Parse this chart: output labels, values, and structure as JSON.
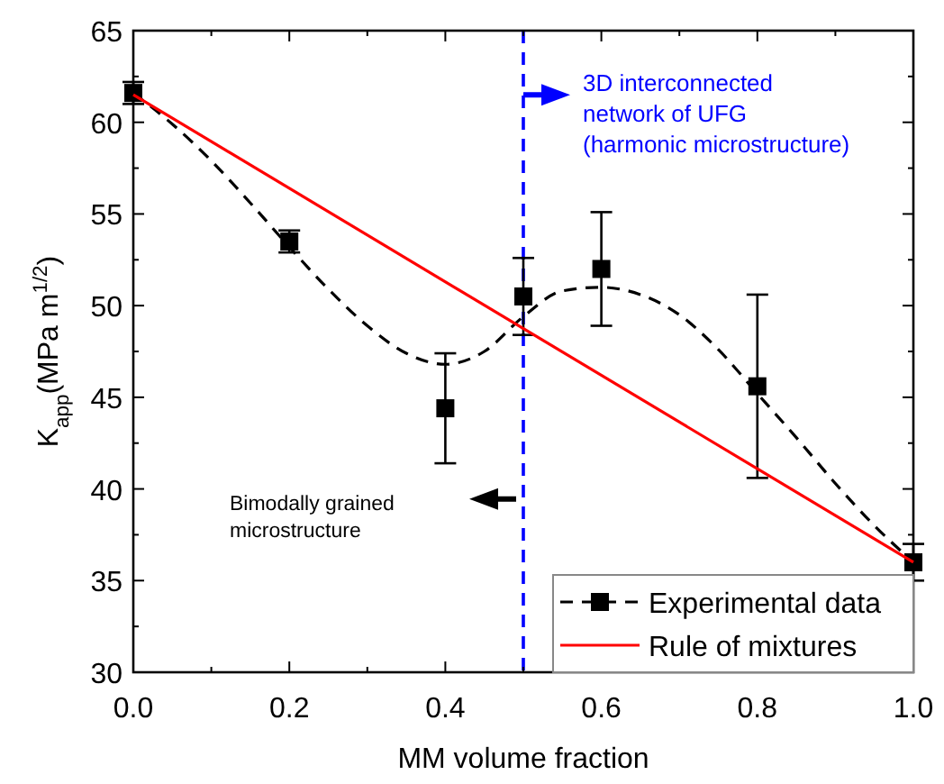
{
  "chart_data": {
    "type": "scatter",
    "xlabel": "MM volume fraction",
    "ylabel": "K$_{app}$(MPa m$^{1/2}$)",
    "xlim": [
      0,
      1
    ],
    "ylim": [
      30,
      65
    ],
    "xticks": [
      {
        "value": 0,
        "label": "0.0"
      },
      {
        "value": 0.1,
        "label": null
      },
      {
        "value": 0.2,
        "label": "0.2"
      },
      {
        "value": 0.3,
        "label": null
      },
      {
        "value": 0.4,
        "label": "0.4"
      },
      {
        "value": 0.5,
        "label": null
      },
      {
        "value": 0.6,
        "label": "0.6"
      },
      {
        "value": 0.7,
        "label": null
      },
      {
        "value": 0.8,
        "label": "0.8"
      },
      {
        "value": 0.9,
        "label": null
      },
      {
        "value": 1,
        "label": "1.0"
      }
    ],
    "yticks": [
      30,
      {
        "value": 32.5,
        "label": null
      },
      35,
      {
        "value": 37.5,
        "label": null
      },
      40,
      {
        "value": 42.5,
        "label": null
      },
      45,
      {
        "value": 47.5,
        "label": null
      },
      50,
      {
        "value": 52.5,
        "label": null
      },
      55,
      {
        "value": 57.5,
        "label": null
      },
      60,
      {
        "value": 62.5,
        "label": null
      },
      65
    ],
    "x": [
      0,
      0.2,
      0.4,
      0.5,
      0.6,
      0.8,
      1.0
    ],
    "series": [
      {
        "type": "line",
        "color": "#000000",
        "line_style": "dashed",
        "marker": "none",
        "x": [
          0,
          0.05,
          0.1,
          0.15,
          0.2,
          0.25,
          0.3,
          0.35,
          0.4,
          0.45,
          0.5,
          0.55,
          0.6,
          0.65,
          0.7,
          0.75,
          0.8,
          0.85,
          0.9,
          0.95,
          1.0
        ],
        "values": [
          61.6,
          59.9,
          57.9,
          55.6,
          53.2,
          50.9,
          48.9,
          47.4,
          46.8,
          47.5,
          49.4,
          50.8,
          51.0,
          50.6,
          49.5,
          47.6,
          45.2,
          42.8,
          40.3,
          38.0,
          36.0
        ]
      },
      {
        "type": "scatter",
        "name": "Experimental data",
        "color": "#000000",
        "marker": "square",
        "line_style": "dashed",
        "values": [
          61.6,
          53.5,
          44.4,
          50.5,
          52.0,
          45.6,
          36.0
        ],
        "errors": [
          0.6,
          0.6,
          3.0,
          2.1,
          3.1,
          5.0,
          1.0
        ]
      },
      {
        "type": "line",
        "name": "Rule of mixtures",
        "color": "#ff0000",
        "marker": "none",
        "line_style": "solid",
        "x": [
          0,
          1
        ],
        "values": [
          61.5,
          36.0
        ]
      }
    ],
    "ref_lines": [
      {
        "axis": "x",
        "value": 0.5,
        "color": "#0000ff",
        "line_style": "dashed"
      }
    ],
    "annotations": [
      "3D interconnected\nnetwork of UFG\n(harmonic microstructure)",
      "Bimodally grained\nmicrostructure"
    ],
    "legend": "bottom right",
    "grid": false
  }
}
